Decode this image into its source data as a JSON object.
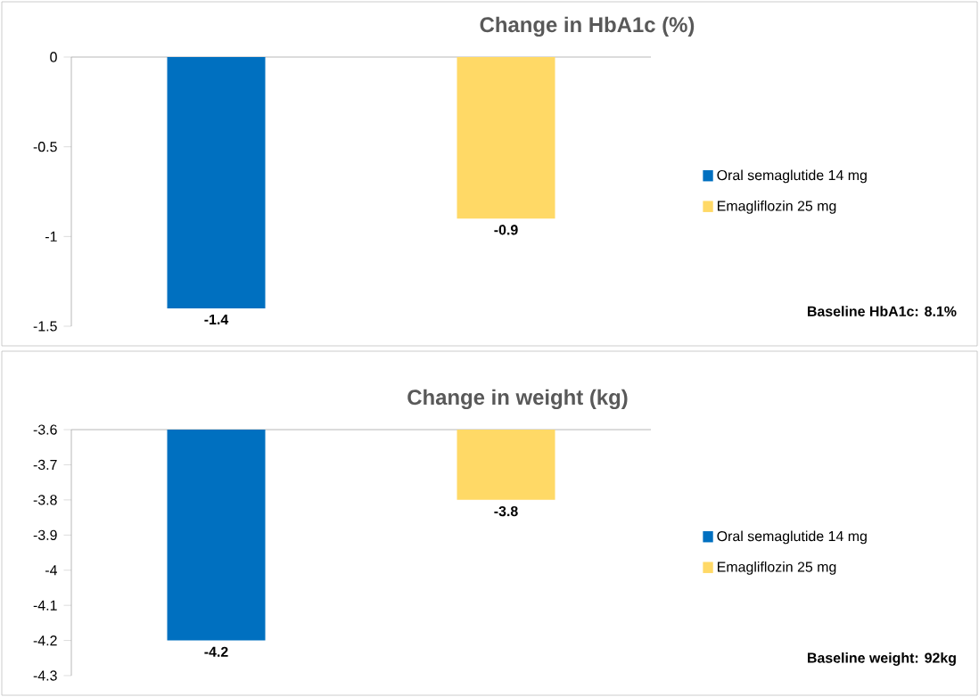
{
  "chart_data": [
    {
      "type": "bar",
      "title": "Change in HbA1c (%)",
      "categories": [
        null,
        null
      ],
      "series": [
        {
          "name": "Oral semaglutide 14 mg",
          "color": "#0070c0",
          "values": [
            -1.4,
            null
          ],
          "value_labels": [
            "-1.4",
            null
          ]
        },
        {
          "name": "Emagliflozin 25 mg",
          "color": "#ffd966",
          "values": [
            null,
            -0.9
          ],
          "value_labels": [
            null,
            "-0.9"
          ]
        }
      ],
      "ylim": [
        -1.5,
        0
      ],
      "yticks": [
        0,
        -0.5,
        -1,
        -1.5
      ],
      "legend": "right",
      "annotations": [
        "Baseline HbA1c: 8.1%"
      ]
    },
    {
      "type": "bar",
      "title": "Change in weight (kg)",
      "categories": [
        null,
        null
      ],
      "series": [
        {
          "name": "Oral semaglutide 14 mg",
          "color": "#0070c0",
          "values": [
            -4.2,
            null
          ],
          "value_labels": [
            "-4.2",
            null
          ]
        },
        {
          "name": "Emagliflozin 25 mg",
          "color": "#ffd966",
          "values": [
            null,
            -3.8
          ],
          "value_labels": [
            null,
            "-3.8"
          ]
        }
      ],
      "ylim": [
        -4.3,
        -3.6
      ],
      "yticks": [
        -3.6,
        -3.7,
        -3.8,
        -3.9,
        -4,
        -4.1,
        -4.2,
        -4.3
      ],
      "legend": "right",
      "annotations": [
        "Baseline weight: 92kg"
      ]
    }
  ]
}
